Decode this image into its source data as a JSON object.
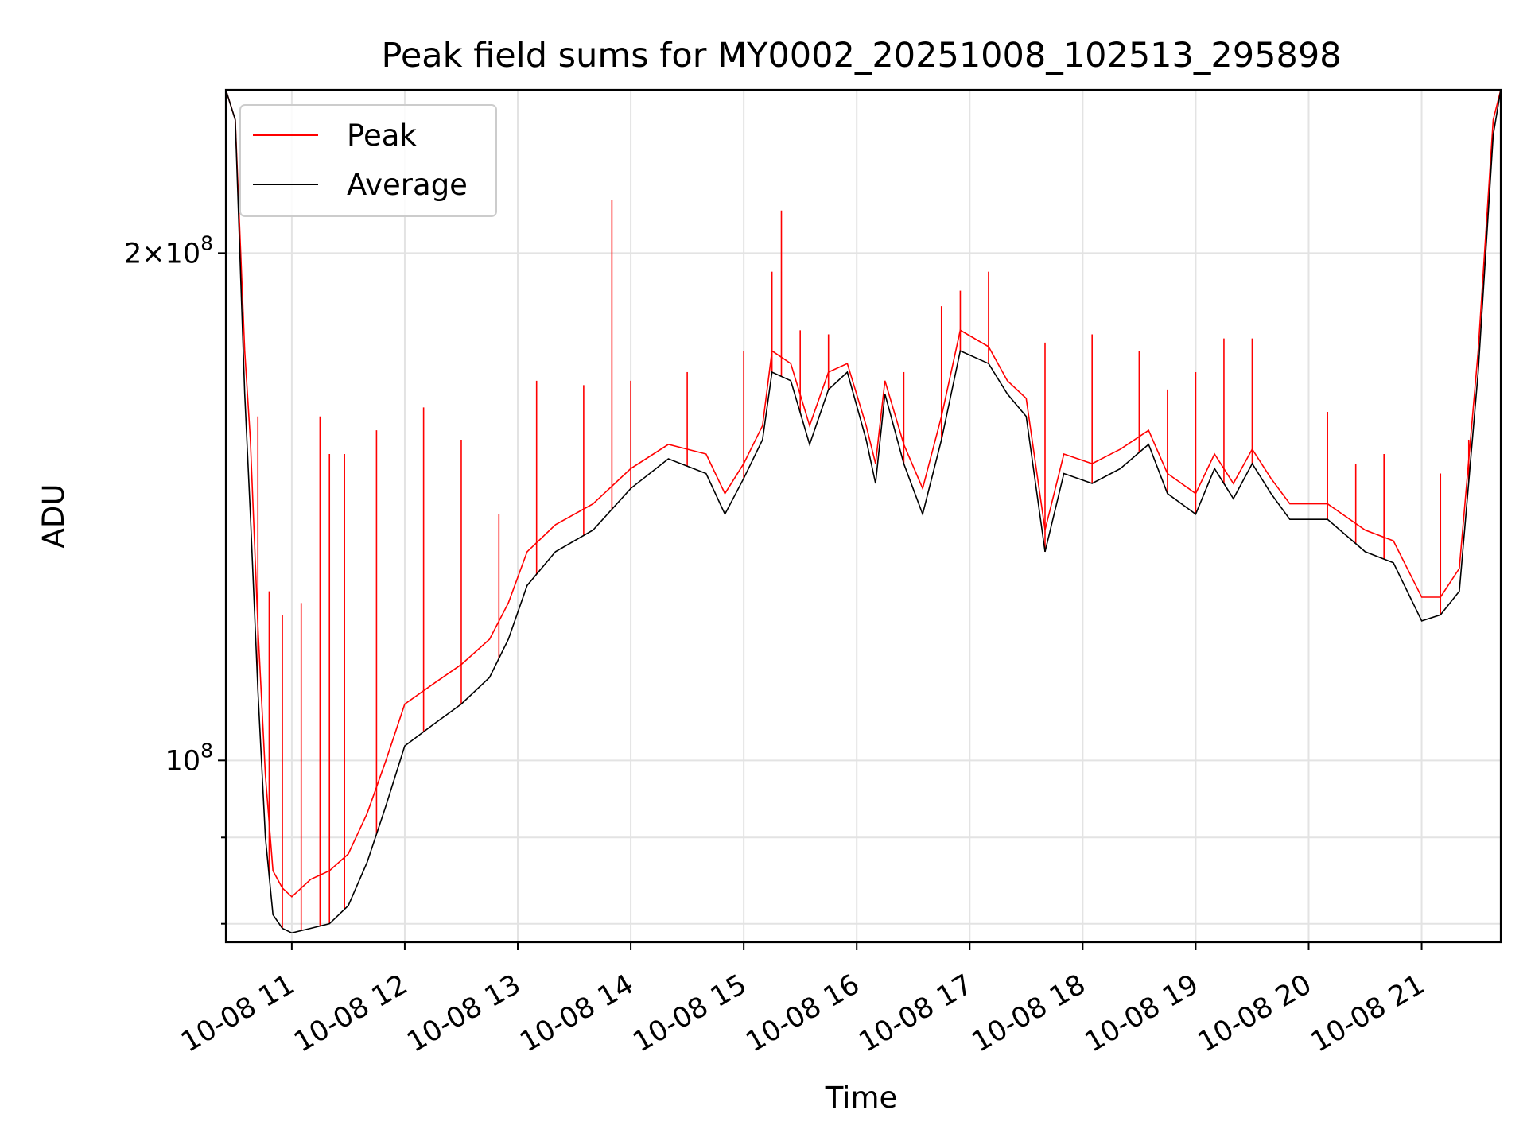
{
  "chart_data": {
    "type": "line",
    "title": "Peak field sums for MY0002_20251008_102513_295898",
    "xlabel": "Time",
    "ylabel": "ADU",
    "y_scale": "log",
    "ylim": [
      78000000,
      250000000
    ],
    "xlim": [
      "2025-10-08 10:25",
      "2025-10-08 21:42"
    ],
    "grid": true,
    "legend_position": "top-left",
    "x_ticks": [
      {
        "t": "2025-10-08 11:00",
        "label": "10-08 11"
      },
      {
        "t": "2025-10-08 12:00",
        "label": "10-08 12"
      },
      {
        "t": "2025-10-08 13:00",
        "label": "10-08 13"
      },
      {
        "t": "2025-10-08 14:00",
        "label": "10-08 14"
      },
      {
        "t": "2025-10-08 15:00",
        "label": "10-08 15"
      },
      {
        "t": "2025-10-08 16:00",
        "label": "10-08 16"
      },
      {
        "t": "2025-10-08 17:00",
        "label": "10-08 17"
      },
      {
        "t": "2025-10-08 18:00",
        "label": "10-08 18"
      },
      {
        "t": "2025-10-08 19:00",
        "label": "10-08 19"
      },
      {
        "t": "2025-10-08 20:00",
        "label": "10-08 20"
      },
      {
        "t": "2025-10-08 21:00",
        "label": "10-08 21"
      }
    ],
    "y_ticks_major": [
      {
        "value": 100000000,
        "base": "10",
        "exp": "8",
        "coef": ""
      },
      {
        "value": 200000000,
        "base": "10",
        "exp": "8",
        "coef": "2"
      }
    ],
    "y_ticks_minor": [
      80000000,
      90000000
    ],
    "series": [
      {
        "name": "Peak",
        "color": "#ff0000",
        "points": [
          [
            "2025-10-08 10:25",
            250000000
          ],
          [
            "2025-10-08 10:30",
            240000000
          ],
          [
            "2025-10-08 10:35",
            175000000
          ],
          [
            "2025-10-08 10:38",
            155000000
          ],
          [
            "2025-10-08 10:42",
            120000000
          ],
          [
            "2025-10-08 10:46",
            98000000
          ],
          [
            "2025-10-08 10:50",
            86000000
          ],
          [
            "2025-10-08 10:55",
            84000000
          ],
          [
            "2025-10-08 11:00",
            83000000
          ],
          [
            "2025-10-08 11:10",
            85000000
          ],
          [
            "2025-10-08 11:20",
            86000000
          ],
          [
            "2025-10-08 11:30",
            88000000
          ],
          [
            "2025-10-08 11:40",
            93000000
          ],
          [
            "2025-10-08 11:50",
            100000000
          ],
          [
            "2025-10-08 12:00",
            108000000
          ],
          [
            "2025-10-08 12:15",
            111000000
          ],
          [
            "2025-10-08 12:30",
            114000000
          ],
          [
            "2025-10-08 12:45",
            118000000
          ],
          [
            "2025-10-08 12:55",
            124000000
          ],
          [
            "2025-10-08 13:05",
            133000000
          ],
          [
            "2025-10-08 13:20",
            138000000
          ],
          [
            "2025-10-08 13:40",
            142000000
          ],
          [
            "2025-10-08 14:00",
            149000000
          ],
          [
            "2025-10-08 14:20",
            154000000
          ],
          [
            "2025-10-08 14:40",
            152000000
          ],
          [
            "2025-10-08 14:50",
            144000000
          ],
          [
            "2025-10-08 15:00",
            150000000
          ],
          [
            "2025-10-08 15:10",
            158000000
          ],
          [
            "2025-10-08 15:15",
            175000000
          ],
          [
            "2025-10-08 15:25",
            172000000
          ],
          [
            "2025-10-08 15:35",
            158000000
          ],
          [
            "2025-10-08 15:45",
            170000000
          ],
          [
            "2025-10-08 15:55",
            172000000
          ],
          [
            "2025-10-08 16:05",
            158000000
          ],
          [
            "2025-10-08 16:10",
            150000000
          ],
          [
            "2025-10-08 16:15",
            168000000
          ],
          [
            "2025-10-08 16:25",
            154000000
          ],
          [
            "2025-10-08 16:35",
            145000000
          ],
          [
            "2025-10-08 16:45",
            160000000
          ],
          [
            "2025-10-08 16:55",
            180000000
          ],
          [
            "2025-10-08 17:10",
            176000000
          ],
          [
            "2025-10-08 17:20",
            168000000
          ],
          [
            "2025-10-08 17:30",
            164000000
          ],
          [
            "2025-10-08 17:40",
            137000000
          ],
          [
            "2025-10-08 17:50",
            152000000
          ],
          [
            "2025-10-08 18:05",
            150000000
          ],
          [
            "2025-10-08 18:20",
            153000000
          ],
          [
            "2025-10-08 18:35",
            157000000
          ],
          [
            "2025-10-08 18:45",
            148000000
          ],
          [
            "2025-10-08 19:00",
            144000000
          ],
          [
            "2025-10-08 19:10",
            152000000
          ],
          [
            "2025-10-08 19:20",
            146000000
          ],
          [
            "2025-10-08 19:30",
            153000000
          ],
          [
            "2025-10-08 19:40",
            147000000
          ],
          [
            "2025-10-08 19:50",
            142000000
          ],
          [
            "2025-10-08 20:10",
            142000000
          ],
          [
            "2025-10-08 20:30",
            137000000
          ],
          [
            "2025-10-08 20:45",
            135000000
          ],
          [
            "2025-10-08 21:00",
            125000000
          ],
          [
            "2025-10-08 21:10",
            125000000
          ],
          [
            "2025-10-08 21:20",
            130000000
          ],
          [
            "2025-10-08 21:30",
            175000000
          ],
          [
            "2025-10-08 21:38",
            240000000
          ],
          [
            "2025-10-08 21:42",
            250000000
          ]
        ],
        "spikes": [
          [
            "2025-10-08 10:42",
            160000000
          ],
          [
            "2025-10-08 10:48",
            126000000
          ],
          [
            "2025-10-08 10:55",
            122000000
          ],
          [
            "2025-10-08 11:05",
            124000000
          ],
          [
            "2025-10-08 11:15",
            160000000
          ],
          [
            "2025-10-08 11:20",
            152000000
          ],
          [
            "2025-10-08 11:28",
            152000000
          ],
          [
            "2025-10-08 11:45",
            157000000
          ],
          [
            "2025-10-08 12:10",
            162000000
          ],
          [
            "2025-10-08 12:30",
            155000000
          ],
          [
            "2025-10-08 12:50",
            140000000
          ],
          [
            "2025-10-08 13:10",
            168000000
          ],
          [
            "2025-10-08 13:35",
            167000000
          ],
          [
            "2025-10-08 13:50",
            215000000
          ],
          [
            "2025-10-08 14:00",
            168000000
          ],
          [
            "2025-10-08 14:30",
            170000000
          ],
          [
            "2025-10-08 15:00",
            175000000
          ],
          [
            "2025-10-08 15:15",
            195000000
          ],
          [
            "2025-10-08 15:20",
            212000000
          ],
          [
            "2025-10-08 15:30",
            180000000
          ],
          [
            "2025-10-08 15:45",
            179000000
          ],
          [
            "2025-10-08 16:00",
            163000000
          ],
          [
            "2025-10-08 16:25",
            170000000
          ],
          [
            "2025-10-08 16:45",
            186000000
          ],
          [
            "2025-10-08 16:55",
            190000000
          ],
          [
            "2025-10-08 17:10",
            195000000
          ],
          [
            "2025-10-08 17:40",
            177000000
          ],
          [
            "2025-10-08 18:05",
            179000000
          ],
          [
            "2025-10-08 18:30",
            175000000
          ],
          [
            "2025-10-08 18:45",
            166000000
          ],
          [
            "2025-10-08 19:00",
            170000000
          ],
          [
            "2025-10-08 19:15",
            178000000
          ],
          [
            "2025-10-08 19:30",
            178000000
          ],
          [
            "2025-10-08 20:10",
            161000000
          ],
          [
            "2025-10-08 20:25",
            150000000
          ],
          [
            "2025-10-08 20:40",
            152000000
          ],
          [
            "2025-10-08 21:10",
            148000000
          ],
          [
            "2025-10-08 21:25",
            155000000
          ]
        ]
      },
      {
        "name": "Average",
        "color": "#000000",
        "points": [
          [
            "2025-10-08 10:25",
            250000000
          ],
          [
            "2025-10-08 10:30",
            240000000
          ],
          [
            "2025-10-08 10:35",
            165000000
          ],
          [
            "2025-10-08 10:38",
            140000000
          ],
          [
            "2025-10-08 10:42",
            110000000
          ],
          [
            "2025-10-08 10:46",
            90000000
          ],
          [
            "2025-10-08 10:50",
            81000000
          ],
          [
            "2025-10-08 10:55",
            79500000
          ],
          [
            "2025-10-08 11:00",
            79000000
          ],
          [
            "2025-10-08 11:10",
            79500000
          ],
          [
            "2025-10-08 11:20",
            80000000
          ],
          [
            "2025-10-08 11:30",
            82000000
          ],
          [
            "2025-10-08 11:40",
            87000000
          ],
          [
            "2025-10-08 11:50",
            94000000
          ],
          [
            "2025-10-08 12:00",
            102000000
          ],
          [
            "2025-10-08 12:15",
            105000000
          ],
          [
            "2025-10-08 12:30",
            108000000
          ],
          [
            "2025-10-08 12:45",
            112000000
          ],
          [
            "2025-10-08 12:55",
            118000000
          ],
          [
            "2025-10-08 13:05",
            127000000
          ],
          [
            "2025-10-08 13:20",
            133000000
          ],
          [
            "2025-10-08 13:40",
            137000000
          ],
          [
            "2025-10-08 14:00",
            145000000
          ],
          [
            "2025-10-08 14:20",
            151000000
          ],
          [
            "2025-10-08 14:40",
            148000000
          ],
          [
            "2025-10-08 14:50",
            140000000
          ],
          [
            "2025-10-08 15:00",
            147000000
          ],
          [
            "2025-10-08 15:10",
            155000000
          ],
          [
            "2025-10-08 15:15",
            170000000
          ],
          [
            "2025-10-08 15:25",
            168000000
          ],
          [
            "2025-10-08 15:35",
            154000000
          ],
          [
            "2025-10-08 15:45",
            166000000
          ],
          [
            "2025-10-08 15:55",
            170000000
          ],
          [
            "2025-10-08 16:05",
            155000000
          ],
          [
            "2025-10-08 16:10",
            146000000
          ],
          [
            "2025-10-08 16:15",
            165000000
          ],
          [
            "2025-10-08 16:25",
            150000000
          ],
          [
            "2025-10-08 16:35",
            140000000
          ],
          [
            "2025-10-08 16:45",
            155000000
          ],
          [
            "2025-10-08 16:55",
            175000000
          ],
          [
            "2025-10-08 17:10",
            172000000
          ],
          [
            "2025-10-08 17:20",
            165000000
          ],
          [
            "2025-10-08 17:30",
            160000000
          ],
          [
            "2025-10-08 17:40",
            133000000
          ],
          [
            "2025-10-08 17:50",
            148000000
          ],
          [
            "2025-10-08 18:05",
            146000000
          ],
          [
            "2025-10-08 18:20",
            149000000
          ],
          [
            "2025-10-08 18:35",
            154000000
          ],
          [
            "2025-10-08 18:45",
            144000000
          ],
          [
            "2025-10-08 19:00",
            140000000
          ],
          [
            "2025-10-08 19:10",
            149000000
          ],
          [
            "2025-10-08 19:20",
            143000000
          ],
          [
            "2025-10-08 19:30",
            150000000
          ],
          [
            "2025-10-08 19:40",
            144000000
          ],
          [
            "2025-10-08 19:50",
            139000000
          ],
          [
            "2025-10-08 20:10",
            139000000
          ],
          [
            "2025-10-08 20:30",
            133000000
          ],
          [
            "2025-10-08 20:45",
            131000000
          ],
          [
            "2025-10-08 21:00",
            121000000
          ],
          [
            "2025-10-08 21:10",
            122000000
          ],
          [
            "2025-10-08 21:20",
            126000000
          ],
          [
            "2025-10-08 21:30",
            170000000
          ],
          [
            "2025-10-08 21:38",
            235000000
          ],
          [
            "2025-10-08 21:42",
            250000000
          ]
        ]
      }
    ]
  }
}
